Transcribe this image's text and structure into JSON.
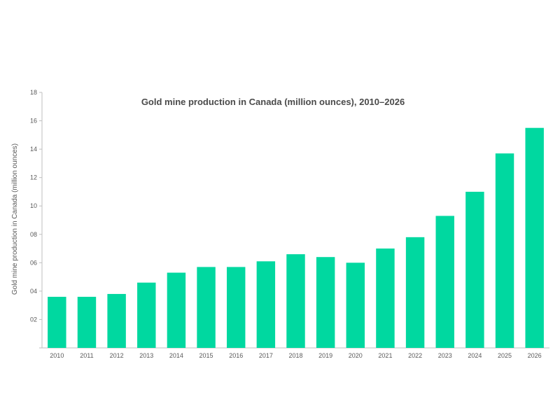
{
  "chart_data": {
    "type": "bar",
    "title": "Gold mine production in Canada (million ounces), 2010–2026",
    "xlabel": "",
    "ylabel": "Gold mine production in Canada (million ounces)",
    "categories": [
      "2010",
      "2011",
      "2012",
      "2013",
      "2014",
      "2015",
      "2016",
      "2017",
      "2018",
      "2019",
      "2020",
      "2021",
      "2022",
      "2023",
      "2024",
      "2025",
      "2026"
    ],
    "values": [
      3.6,
      3.6,
      3.8,
      4.6,
      5.3,
      5.7,
      5.7,
      6.1,
      6.6,
      6.4,
      6.0,
      7.0,
      7.8,
      9.3,
      11.0,
      13.7,
      15.5
    ],
    "ylim": [
      0,
      18
    ],
    "yticks": [
      0,
      2,
      4,
      6,
      8,
      10,
      12,
      14,
      16,
      18
    ],
    "ytick_labels": [
      "",
      "02",
      "04",
      "06",
      "08",
      "10",
      "12",
      "14",
      "16",
      "18"
    ],
    "grid": false,
    "legend": "none",
    "bar_color": "#00d8a0",
    "axis_color": "#bfbfbf"
  }
}
